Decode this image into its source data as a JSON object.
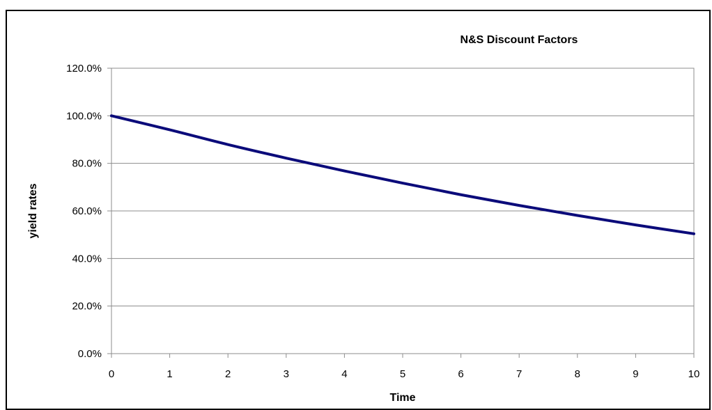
{
  "chart_data": {
    "type": "line",
    "title": "N&S Discount Factors",
    "xlabel": "Time",
    "ylabel": "yield rates",
    "xlim": [
      0,
      10
    ],
    "ylim": [
      0,
      1.2
    ],
    "x_ticks": [
      "0",
      "1",
      "2",
      "3",
      "4",
      "5",
      "6",
      "7",
      "8",
      "9",
      "10"
    ],
    "y_ticks": [
      "0.0%",
      "20.0%",
      "40.0%",
      "60.0%",
      "80.0%",
      "100.0%",
      "120.0%"
    ],
    "y_tick_values": [
      0,
      0.2,
      0.4,
      0.6,
      0.8,
      1.0,
      1.2
    ],
    "grid": true,
    "legend": "none",
    "series": [
      {
        "color": "#0b0b7a",
        "x": [
          0,
          1,
          2,
          3,
          4,
          5,
          6,
          7,
          8,
          9,
          10
        ],
        "y": [
          1.0,
          0.941,
          0.879,
          0.822,
          0.768,
          0.717,
          0.668,
          0.623,
          0.581,
          0.541,
          0.504
        ]
      }
    ]
  }
}
